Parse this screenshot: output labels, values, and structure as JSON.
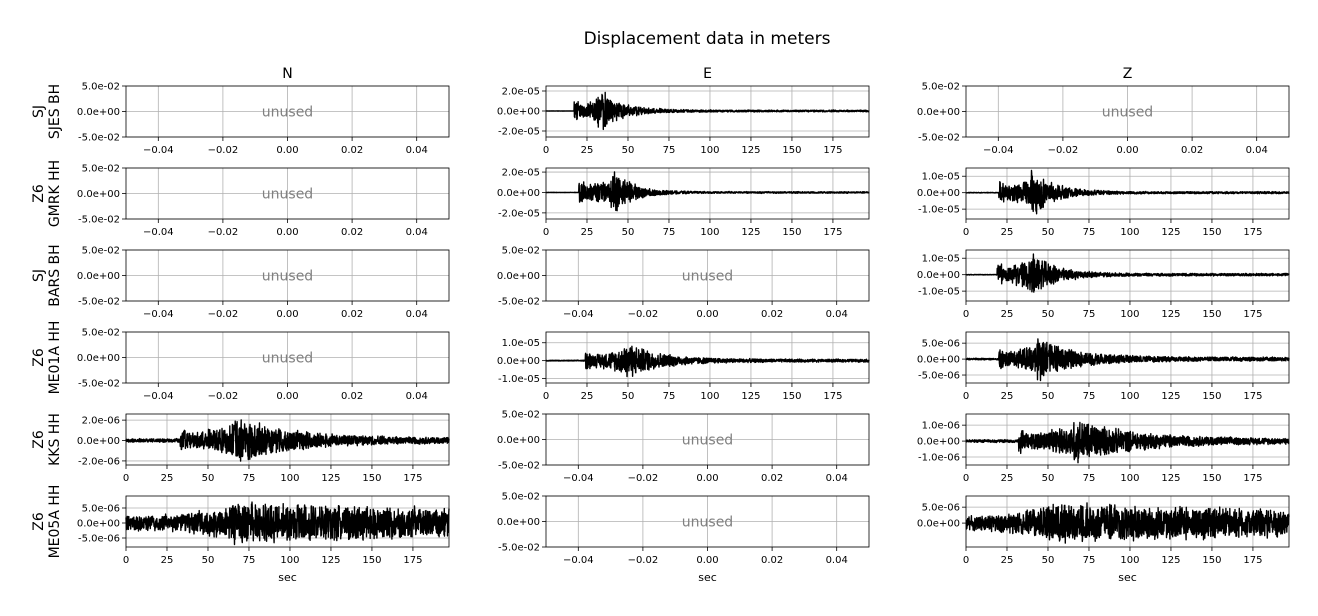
{
  "figure": {
    "title": "Displacement data in meters",
    "unused_label": "unused",
    "trace_color": "#000000",
    "grid_color": "#b0b0b0",
    "unused_color": "#808080"
  },
  "chart_data": {
    "type": "line",
    "title": "Displacement data in meters",
    "grid": true,
    "columns": [
      "N",
      "E",
      "Z"
    ],
    "rows": [
      [
        "SJ",
        "SJES BH"
      ],
      [
        "Z6",
        "GMRK HH"
      ],
      [
        "SJ",
        "BARS BH"
      ],
      [
        "Z6",
        "ME01A HH"
      ],
      [
        "Z6",
        "KKS HH"
      ],
      [
        "Z6",
        "ME05A HH"
      ]
    ],
    "unused_panel": {
      "xlim": [
        -0.05,
        0.05
      ],
      "xticks": [
        -0.04,
        -0.02,
        0.0,
        0.02,
        0.04
      ],
      "xtick_labels": [
        "−0.04",
        "−0.02",
        "0.00",
        "0.02",
        "0.04"
      ],
      "ylim": [
        -0.05,
        0.05
      ],
      "yticks": [
        0.05,
        0.0,
        -0.05
      ],
      "ytick_labels": [
        "5.0e-02",
        "0.0e+00",
        "-5.0e-02"
      ]
    },
    "time_axis": {
      "xlim": [
        0,
        197
      ],
      "xticks": [
        0,
        25,
        50,
        75,
        100,
        125,
        150,
        175
      ],
      "xtick_labels": [
        "0",
        "25",
        "50",
        "75",
        "100",
        "125",
        "150",
        "175"
      ],
      "xlabel": "sec"
    },
    "panels": [
      {
        "row": 0,
        "col": 0,
        "unused": true
      },
      {
        "row": 0,
        "col": 1,
        "unused": false,
        "ylim": [
          -2.6e-05,
          2.5e-05
        ],
        "yticks": [
          2e-05,
          0,
          -2e-05
        ],
        "ytick_labels": [
          "2.0e-05",
          "0.0e+00",
          "-2.0e-05"
        ],
        "onset": 17,
        "peak_time": 34,
        "peak": 2e-05,
        "coda_decay": 14,
        "pre_noise": 1e-07,
        "tail_level": 0.05
      },
      {
        "row": 0,
        "col": 2,
        "unused": true
      },
      {
        "row": 1,
        "col": 0,
        "unused": true
      },
      {
        "row": 1,
        "col": 1,
        "unused": false,
        "ylim": [
          -2.6e-05,
          2.4e-05
        ],
        "yticks": [
          2e-05,
          0,
          -2e-05
        ],
        "ytick_labels": [
          "2.0e-05",
          "0.0e+00",
          "-2.0e-05"
        ],
        "onset": 20,
        "peak_time": 42,
        "peak": 2.2e-05,
        "coda_decay": 12,
        "pre_noise": 2e-07,
        "tail_level": 0.04
      },
      {
        "row": 1,
        "col": 2,
        "unused": false,
        "ylim": [
          -1.6e-05,
          1.5e-05
        ],
        "yticks": [
          1e-05,
          0,
          -1e-05
        ],
        "ytick_labels": [
          "1.0e-05",
          "0.0e+00",
          "-1.0e-05"
        ],
        "onset": 20,
        "peak_time": 42,
        "peak": 1.4e-05,
        "coda_decay": 14,
        "pre_noise": 2e-07,
        "tail_level": 0.05
      },
      {
        "row": 2,
        "col": 0,
        "unused": true
      },
      {
        "row": 2,
        "col": 1,
        "unused": true
      },
      {
        "row": 2,
        "col": 2,
        "unused": false,
        "ylim": [
          -1.6e-05,
          1.5e-05
        ],
        "yticks": [
          1e-05,
          0,
          -1e-05
        ],
        "ytick_labels": [
          "1.0e-05",
          "0.0e+00",
          "-1.0e-05"
        ],
        "onset": 19,
        "peak_time": 40,
        "peak": 1.4e-05,
        "coda_decay": 15,
        "pre_noise": 2e-07,
        "tail_level": 0.06
      },
      {
        "row": 3,
        "col": 0,
        "unused": true
      },
      {
        "row": 3,
        "col": 1,
        "unused": false,
        "ylim": [
          -1.25e-05,
          1.6e-05
        ],
        "yticks": [
          1e-05,
          0,
          -1e-05
        ],
        "ytick_labels": [
          "1.0e-05",
          "0.0e+00",
          "-1.0e-05"
        ],
        "onset": 24,
        "peak_time": 50,
        "peak": 1.1e-05,
        "coda_decay": 20,
        "pre_noise": 3e-07,
        "tail_level": 0.08
      },
      {
        "row": 3,
        "col": 2,
        "unused": false,
        "ylim": [
          -7.5e-06,
          8.5e-06
        ],
        "yticks": [
          5e-06,
          0,
          -5e-06
        ],
        "ytick_labels": [
          "5.0e-06",
          "0.0e+00",
          "-5.0e-06"
        ],
        "onset": 20,
        "peak_time": 45,
        "peak": 7e-06,
        "coda_decay": 22,
        "pre_noise": 3e-07,
        "tail_level": 0.1
      },
      {
        "row": 4,
        "col": 0,
        "unused": false,
        "ylim": [
          -2.4e-06,
          2.6e-06
        ],
        "yticks": [
          2e-06,
          0,
          -2e-06
        ],
        "ytick_labels": [
          "2.0e-06",
          "0.0e+00",
          "-2.0e-06"
        ],
        "onset": 33,
        "peak_time": 68,
        "peak": 2.4e-06,
        "coda_decay": 35,
        "pre_noise": 2e-07,
        "tail_level": 0.12
      },
      {
        "row": 4,
        "col": 1,
        "unused": true
      },
      {
        "row": 4,
        "col": 2,
        "unused": false,
        "ylim": [
          -1.5e-06,
          1.7e-06
        ],
        "yticks": [
          1e-06,
          0,
          -1e-06
        ],
        "ytick_labels": [
          "1.0e-06",
          "0.0e+00",
          "-1.0e-06"
        ],
        "onset": 32,
        "peak_time": 68,
        "peak": 1.5e-06,
        "coda_decay": 35,
        "pre_noise": 1e-07,
        "tail_level": 0.12
      },
      {
        "row": 5,
        "col": 0,
        "unused": false,
        "ylim": [
          -8e-06,
          9e-06
        ],
        "yticks": [
          5e-06,
          0,
          -5e-06
        ],
        "ytick_labels": [
          "5.0e-06",
          "0.0e+00",
          "-5.0e-06"
        ],
        "onset": 0,
        "peak_time": 65,
        "peak": 7.5e-06,
        "coda_decay": 200,
        "pre_noise": 2.5e-06,
        "tail_level": 0.45
      },
      {
        "row": 5,
        "col": 1,
        "unused": true
      },
      {
        "row": 5,
        "col": 2,
        "unused": false,
        "ylim": [
          -7.5e-06,
          8.5e-06
        ],
        "yticks": [
          5e-06,
          0
        ],
        "ytick_labels": [
          "5.0e-06",
          "0.0e+00"
        ],
        "onset": 0,
        "peak_time": 50,
        "peak": 7e-06,
        "coda_decay": 200,
        "pre_noise": 2e-06,
        "tail_level": 0.4
      }
    ]
  }
}
